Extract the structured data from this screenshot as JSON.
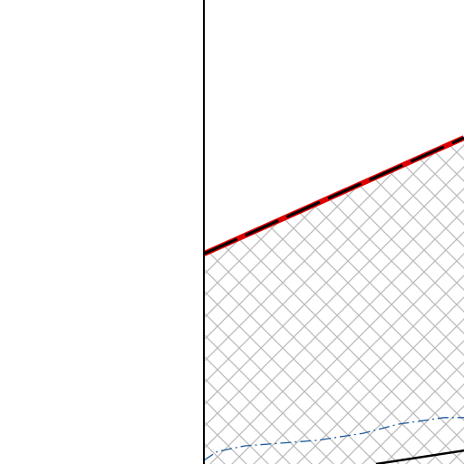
{
  "chart_data": {
    "type": "line",
    "xlim": [
      0,
      1
    ],
    "ylim": [
      0,
      1
    ],
    "series": [
      {
        "color": "#dd0000",
        "style": "dashed",
        "hatch": "x",
        "hatch_color": "#bbbbbb",
        "x": [
          0,
          1
        ],
        "values": [
          0.453,
          0.703
        ]
      },
      {
        "color": "#1f5a9e",
        "style": "dashdot",
        "x": [
          0,
          0.052,
          0.157,
          0.436,
          0.61,
          0.749,
          0.923,
          1
        ],
        "values": [
          0.008,
          0.027,
          0.039,
          0.051,
          0.066,
          0.086,
          0.1,
          0.1
        ]
      },
      {
        "color": "#000000",
        "style": "solid",
        "x": [
          0.662,
          1
        ],
        "values": [
          0,
          0.029
        ]
      }
    ]
  }
}
